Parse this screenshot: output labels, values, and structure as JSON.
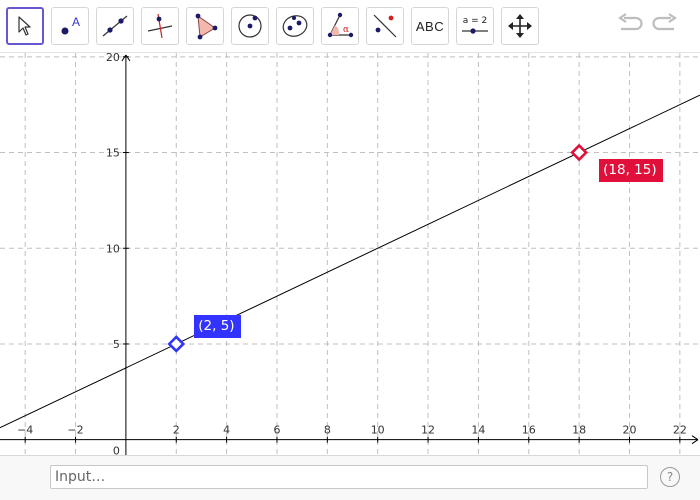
{
  "toolbar": {
    "tools": [
      {
        "name": "move-tool",
        "icon": "cursor-arrow-icon"
      },
      {
        "name": "point-tool",
        "icon": "point-icon",
        "glyph": "A"
      },
      {
        "name": "line-tool",
        "icon": "line-through-points-icon"
      },
      {
        "name": "perpendicular-line-tool",
        "icon": "perpendicular-line-icon"
      },
      {
        "name": "polygon-tool",
        "icon": "polygon-icon"
      },
      {
        "name": "circle-tool",
        "icon": "circle-center-point-icon"
      },
      {
        "name": "ellipse-tool",
        "icon": "ellipse-icon"
      },
      {
        "name": "angle-tool",
        "icon": "angle-icon",
        "glyph": "α"
      },
      {
        "name": "reflect-tool",
        "icon": "reflect-about-line-icon"
      },
      {
        "name": "text-tool",
        "icon": "text-icon",
        "label": "ABC"
      },
      {
        "name": "slider-tool",
        "icon": "slider-icon",
        "label": "a = 2"
      },
      {
        "name": "move-graphics-view-tool",
        "icon": "move-arrows-icon"
      }
    ],
    "undo_icon": "undo-icon",
    "redo_icon": "redo-icon"
  },
  "graphics": {
    "x_range": [
      -5,
      22.8
    ],
    "y_range": [
      -0.8,
      20.2
    ],
    "x_ticks": [
      -4,
      -2,
      2,
      4,
      6,
      8,
      10,
      12,
      14,
      16,
      18,
      20,
      22
    ],
    "x_tick_labels": [
      "−4",
      "−2",
      "2",
      "4",
      "6",
      "8",
      "10",
      "12",
      "14",
      "16",
      "18",
      "20",
      "22"
    ],
    "y_ticks": [
      5,
      10,
      15,
      20
    ],
    "y_tick_labels": [
      "5",
      "10",
      "15",
      "20"
    ],
    "origin_label": "0",
    "grid": true,
    "line": {
      "through": [
        [
          2,
          5
        ],
        [
          18,
          15
        ]
      ],
      "color": "#000000"
    },
    "points": [
      {
        "x": 2,
        "y": 5,
        "label": "(2, 5)",
        "color": "#3333ff",
        "label_bg": "#3333ff"
      },
      {
        "x": 18,
        "y": 15,
        "label": "(18, 15)",
        "color": "#e0103a",
        "label_bg": "#e0103a"
      }
    ]
  },
  "input_bar": {
    "placeholder": "Input…",
    "help_label": "?"
  },
  "colors": {
    "accent": "#6557d2",
    "grid": "#c0c0c0",
    "point_blue": "#3333ff",
    "point_red": "#e0103a"
  }
}
